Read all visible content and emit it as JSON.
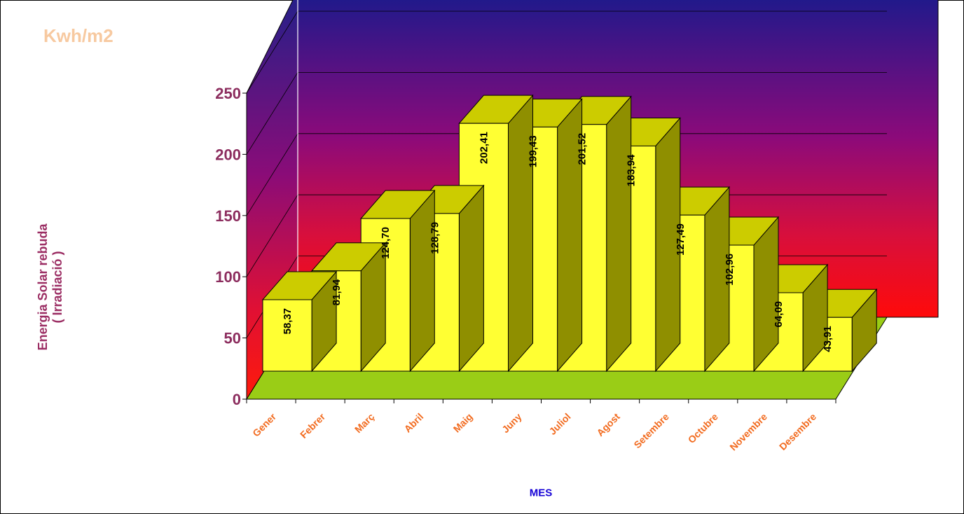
{
  "chart_data": {
    "type": "bar",
    "title": "",
    "unit_label": "Kwh/m2",
    "xlabel": "MES",
    "ylabel_line1": "Energia Solar rebuda",
    "ylabel_line2": "( Irradiació )",
    "categories": [
      "Gener",
      "Febrer",
      "Març",
      "Abril",
      "Maig",
      "Juny",
      "Juliol",
      "Agost",
      "Setembre",
      "Octubre",
      "Novembre",
      "Desembre"
    ],
    "values": [
      58.37,
      81.94,
      124.7,
      128.79,
      202.41,
      199.43,
      201.52,
      183.94,
      127.49,
      102.96,
      64.09,
      43.91
    ],
    "value_labels": [
      "58,37",
      "81,94",
      "124,70",
      "128,79",
      "202,41",
      "199,43",
      "201,52",
      "183,94",
      "127,49",
      "102,96",
      "64,09",
      "43,91"
    ],
    "ylim": [
      0,
      250
    ],
    "yticks": [
      "0",
      "50",
      "100",
      "150",
      "200",
      "250"
    ],
    "grid": true,
    "legend": "none",
    "style": "3d",
    "colors": {
      "bar_front": "#ffff33",
      "bar_top": "#cccc00",
      "bar_side": "#8f8f00",
      "floor": "#9acd16",
      "wall_top": "#1a1a8c",
      "wall_mid": "#8c0a7a",
      "wall_bottom": "#ff0a0a",
      "unit_label": "#f7c9a0",
      "ylabel": "#9b2d63",
      "ytick": "#8c2d5e",
      "xtick": "#f26b1f",
      "xlabel": "#1400d6"
    }
  }
}
